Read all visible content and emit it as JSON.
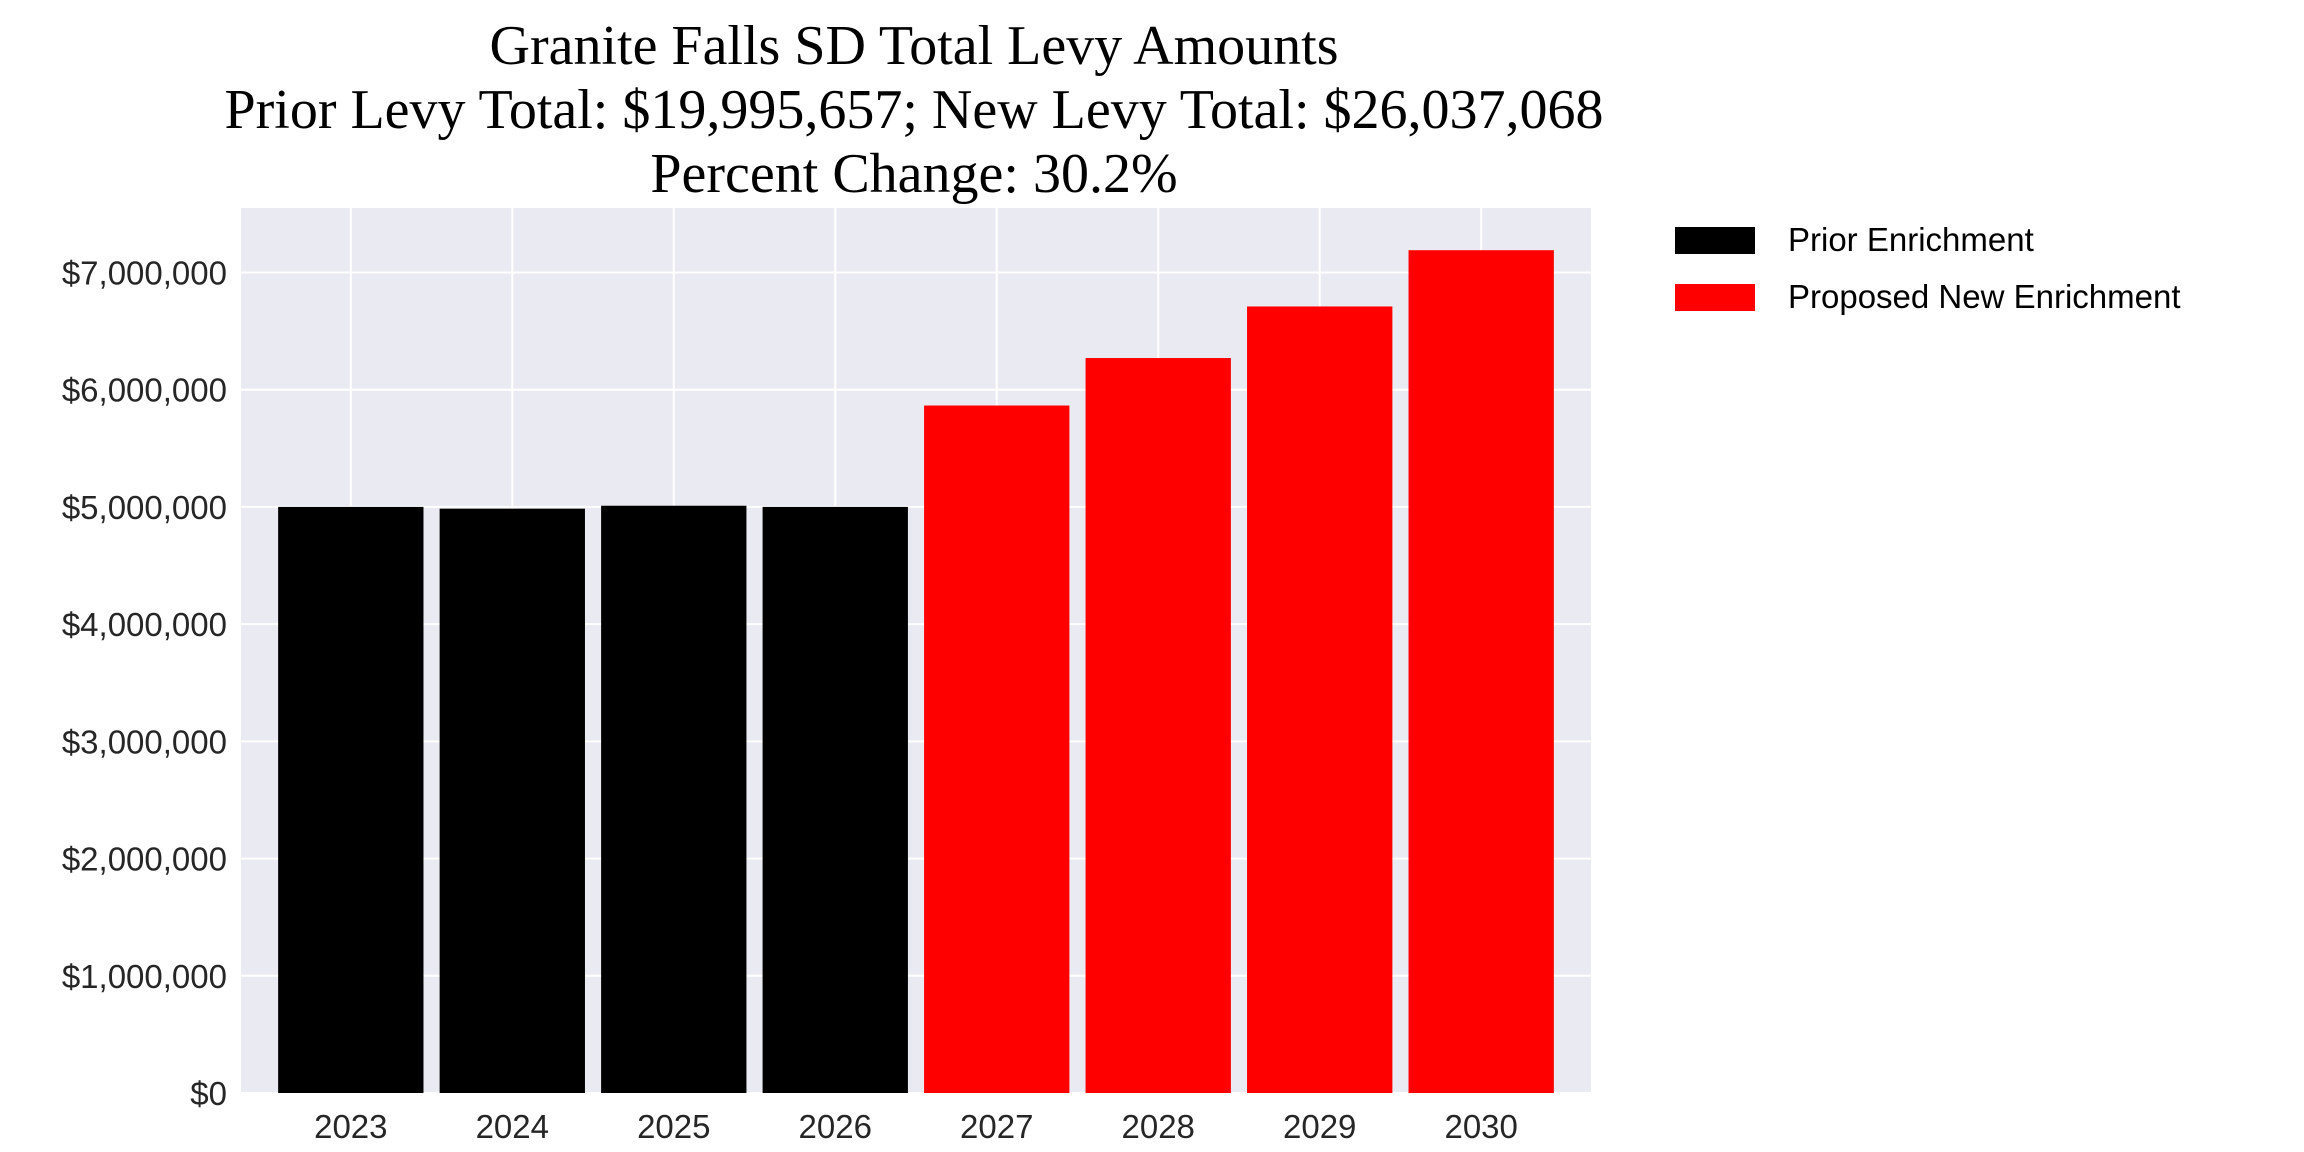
{
  "chart_data": {
    "type": "bar",
    "title_lines": [
      "Granite Falls SD Total Levy Amounts",
      "Prior Levy Total:  $19,995,657; New Levy Total: $26,037,068",
      "Percent Change: 30.2%"
    ],
    "categories": [
      "2023",
      "2024",
      "2025",
      "2026",
      "2027",
      "2028",
      "2029",
      "2030"
    ],
    "series": [
      {
        "name": "Prior Enrichment",
        "color": "#000000",
        "values": [
          5000000,
          4985000,
          5010000,
          5000000,
          null,
          null,
          null,
          null
        ]
      },
      {
        "name": "Proposed New Enrichment",
        "color": "#ff0000",
        "values": [
          null,
          null,
          null,
          null,
          5865000,
          6270000,
          6710000,
          7190000
        ]
      }
    ],
    "ylim": [
      0,
      7550000
    ],
    "yticks": [
      0,
      1000000,
      2000000,
      3000000,
      4000000,
      5000000,
      6000000,
      7000000
    ],
    "ytick_labels": [
      "$0",
      "$1,000,000",
      "$2,000,000",
      "$3,000,000",
      "$4,000,000",
      "$5,000,000",
      "$6,000,000",
      "$7,000,000"
    ],
    "xlabel": "",
    "ylabel": "",
    "grid": true,
    "background": "#eaeaf2",
    "legend": "outside-top-right"
  }
}
